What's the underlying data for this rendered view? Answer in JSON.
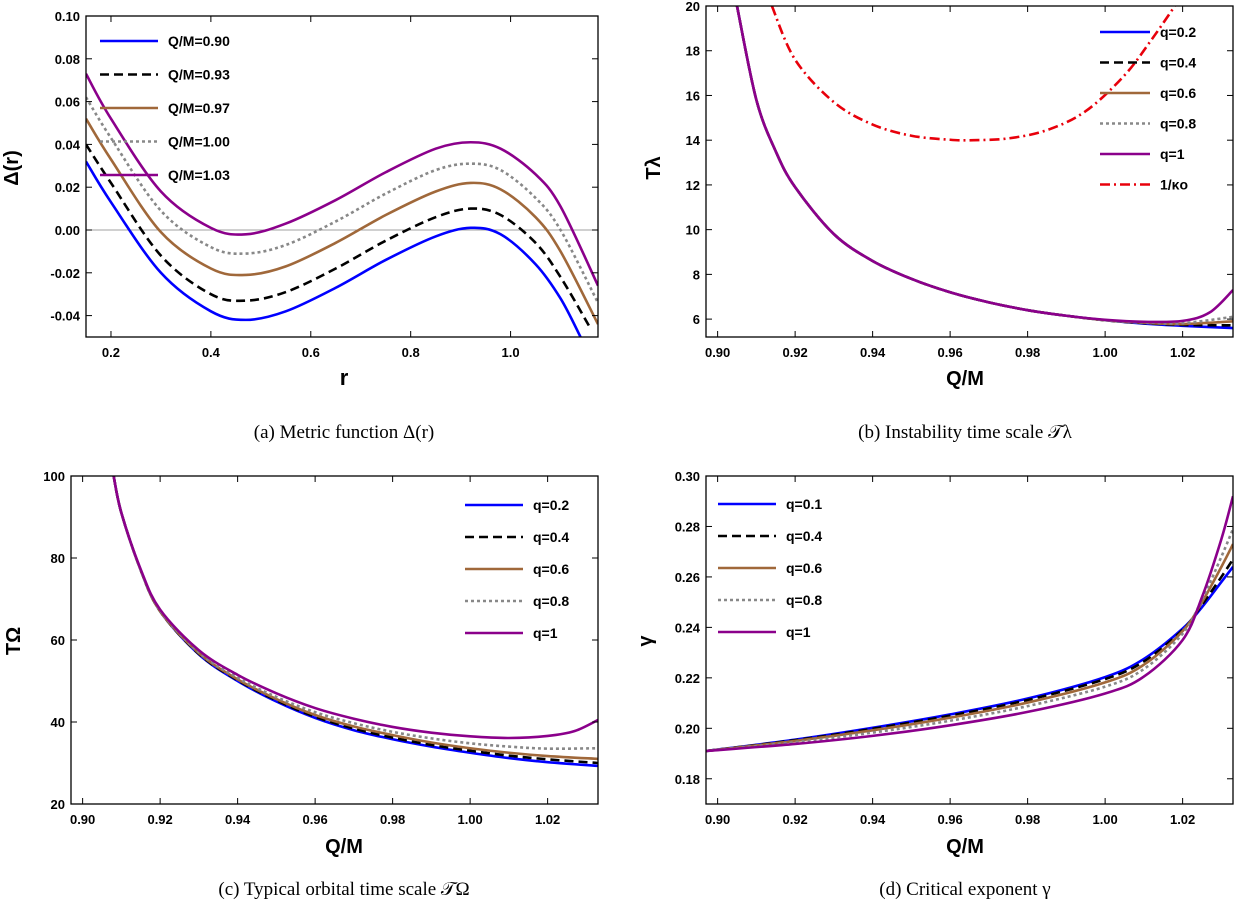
{
  "colors": {
    "blue": "#0000ff",
    "black": "#000000",
    "brown": "#a0683a",
    "gray": "#888888",
    "purple": "#8b008b",
    "red": "#e8000b",
    "zero_line": "#a0a0a0"
  },
  "chart_data": [
    {
      "id": "a",
      "type": "line",
      "caption": "(a)  Metric function Δ(r)",
      "xlabel": "r",
      "ylabel": "Δ(r)",
      "xlim": [
        0.15,
        1.175
      ],
      "ylim": [
        -0.05,
        0.1
      ],
      "xticks": [
        0.2,
        0.4,
        0.6,
        0.8,
        1.0
      ],
      "xtick_labels": [
        "0.2",
        "0.4",
        "0.6",
        "0.8",
        "1.0"
      ],
      "yticks": [
        -0.04,
        -0.02,
        0.0,
        0.02,
        0.04,
        0.06,
        0.08,
        0.1
      ],
      "ytick_labels": [
        "-0.04",
        "-0.02",
        "0.00",
        "0.02",
        "0.04",
        "0.06",
        "0.08",
        "0.10"
      ],
      "zero_line": true,
      "legend_position": "top-left",
      "series": [
        {
          "name": "Q/M=0.90",
          "color": "blue",
          "dash": "solid",
          "x": [
            0.15,
            0.2,
            0.3,
            0.4,
            0.47,
            0.55,
            0.65,
            0.75,
            0.85,
            0.92,
            0.98,
            1.05,
            1.1,
            1.14
          ],
          "y": [
            0.032,
            0.013,
            -0.02,
            -0.038,
            -0.042,
            -0.038,
            -0.027,
            -0.014,
            -0.003,
            0.001,
            -0.002,
            -0.016,
            -0.032,
            -0.05
          ]
        },
        {
          "name": "Q/M=0.93",
          "color": "black",
          "dash": "dashed",
          "x": [
            0.15,
            0.2,
            0.3,
            0.4,
            0.47,
            0.55,
            0.65,
            0.75,
            0.85,
            0.92,
            0.98,
            1.05,
            1.1,
            1.16
          ],
          "y": [
            0.04,
            0.022,
            -0.012,
            -0.03,
            -0.033,
            -0.029,
            -0.018,
            -0.005,
            0.006,
            0.01,
            0.007,
            -0.006,
            -0.022,
            -0.046
          ]
        },
        {
          "name": "Q/M=0.97",
          "color": "brown",
          "dash": "solid",
          "x": [
            0.15,
            0.2,
            0.3,
            0.4,
            0.47,
            0.55,
            0.65,
            0.75,
            0.85,
            0.92,
            0.98,
            1.05,
            1.1,
            1.175
          ],
          "y": [
            0.052,
            0.033,
            -0.001,
            -0.018,
            -0.021,
            -0.017,
            -0.006,
            0.007,
            0.018,
            0.022,
            0.019,
            0.006,
            -0.01,
            -0.044
          ]
        },
        {
          "name": "Q/M=1.00",
          "color": "gray",
          "dash": "dotted",
          "x": [
            0.15,
            0.2,
            0.3,
            0.4,
            0.47,
            0.55,
            0.65,
            0.75,
            0.85,
            0.92,
            0.98,
            1.05,
            1.1,
            1.175
          ],
          "y": [
            0.062,
            0.043,
            0.009,
            -0.008,
            -0.011,
            -0.007,
            0.004,
            0.017,
            0.028,
            0.031,
            0.028,
            0.015,
            0.0,
            -0.034
          ]
        },
        {
          "name": "Q/M=1.03",
          "color": "purple",
          "dash": "solid",
          "x": [
            0.15,
            0.2,
            0.3,
            0.4,
            0.47,
            0.55,
            0.65,
            0.75,
            0.85,
            0.92,
            0.98,
            1.05,
            1.1,
            1.175
          ],
          "y": [
            0.073,
            0.052,
            0.018,
            0.001,
            -0.002,
            0.003,
            0.014,
            0.027,
            0.038,
            0.041,
            0.038,
            0.026,
            0.011,
            -0.026
          ]
        }
      ]
    },
    {
      "id": "b",
      "type": "line",
      "caption": "(b)  Instability time scale 𝒯λ",
      "xlabel": "Q/M",
      "ylabel": "Tλ",
      "xlim": [
        0.897,
        1.033
      ],
      "ylim": [
        5.2,
        20
      ],
      "xticks": [
        0.9,
        0.92,
        0.94,
        0.96,
        0.98,
        1.0,
        1.02
      ],
      "xtick_labels": [
        "0.90",
        "0.92",
        "0.94",
        "0.96",
        "0.98",
        "1.00",
        "1.02"
      ],
      "yticks": [
        6,
        8,
        10,
        12,
        14,
        16,
        18,
        20
      ],
      "ytick_labels": [
        "6",
        "8",
        "10",
        "12",
        "14",
        "16",
        "18",
        "20"
      ],
      "legend_position": "top-right",
      "series": [
        {
          "name": "q=0.2",
          "color": "blue",
          "dash": "solid",
          "x": [
            0.905,
            0.91,
            0.915,
            0.92,
            0.93,
            0.94,
            0.95,
            0.96,
            0.97,
            0.98,
            0.99,
            1.0,
            1.01,
            1.02,
            1.033
          ],
          "y": [
            20.0,
            15.8,
            13.5,
            11.9,
            9.8,
            8.6,
            7.8,
            7.2,
            6.75,
            6.4,
            6.15,
            5.95,
            5.8,
            5.7,
            5.6
          ]
        },
        {
          "name": "q=0.4",
          "color": "black",
          "dash": "dashed",
          "x": [
            0.905,
            0.91,
            0.915,
            0.92,
            0.93,
            0.94,
            0.95,
            0.96,
            0.97,
            0.98,
            0.99,
            1.0,
            1.01,
            1.02,
            1.033
          ],
          "y": [
            20.0,
            15.8,
            13.5,
            11.9,
            9.8,
            8.6,
            7.8,
            7.2,
            6.75,
            6.4,
            6.15,
            5.95,
            5.82,
            5.74,
            5.72
          ]
        },
        {
          "name": "q=0.6",
          "color": "brown",
          "dash": "solid",
          "x": [
            0.905,
            0.91,
            0.915,
            0.92,
            0.93,
            0.94,
            0.95,
            0.96,
            0.97,
            0.98,
            0.99,
            1.0,
            1.01,
            1.02,
            1.033
          ],
          "y": [
            20.0,
            15.8,
            13.5,
            11.9,
            9.8,
            8.6,
            7.8,
            7.2,
            6.75,
            6.4,
            6.15,
            5.95,
            5.84,
            5.78,
            5.9
          ]
        },
        {
          "name": "q=0.8",
          "color": "gray",
          "dash": "dotted",
          "x": [
            0.905,
            0.91,
            0.915,
            0.92,
            0.93,
            0.94,
            0.95,
            0.96,
            0.97,
            0.98,
            0.99,
            1.0,
            1.01,
            1.02,
            1.033
          ],
          "y": [
            20.0,
            15.8,
            13.5,
            11.9,
            9.8,
            8.6,
            7.8,
            7.2,
            6.75,
            6.4,
            6.15,
            5.95,
            5.85,
            5.82,
            6.1
          ]
        },
        {
          "name": "q=1",
          "color": "purple",
          "dash": "solid",
          "x": [
            0.905,
            0.91,
            0.915,
            0.92,
            0.93,
            0.94,
            0.95,
            0.96,
            0.97,
            0.98,
            0.99,
            1.0,
            1.01,
            1.02,
            1.027,
            1.033
          ],
          "y": [
            20.0,
            15.8,
            13.5,
            11.9,
            9.8,
            8.6,
            7.8,
            7.2,
            6.75,
            6.4,
            6.15,
            5.97,
            5.88,
            5.92,
            6.3,
            7.3
          ]
        },
        {
          "name": "1/κo",
          "color": "red",
          "dash": "dashdot",
          "x": [
            0.914,
            0.92,
            0.93,
            0.94,
            0.95,
            0.96,
            0.966,
            0.975,
            0.985,
            0.995,
            1.005,
            1.012,
            1.018
          ],
          "y": [
            20.0,
            17.6,
            15.7,
            14.7,
            14.2,
            14.02,
            14.0,
            14.08,
            14.45,
            15.3,
            16.9,
            18.5,
            20.0
          ]
        }
      ]
    },
    {
      "id": "c",
      "type": "line",
      "caption": "(c)  Typical orbital time scale 𝒯Ω",
      "xlabel": "Q/M",
      "ylabel": "TΩ",
      "xlim": [
        0.897,
        1.033
      ],
      "ylim": [
        20,
        100
      ],
      "xticks": [
        0.9,
        0.92,
        0.94,
        0.96,
        0.98,
        1.0,
        1.02
      ],
      "xtick_labels": [
        "0.90",
        "0.92",
        "0.94",
        "0.96",
        "0.98",
        "1.00",
        "1.02"
      ],
      "yticks": [
        20,
        40,
        60,
        80,
        100
      ],
      "ytick_labels": [
        "20",
        "40",
        "60",
        "80",
        "100"
      ],
      "legend_position": "top-right",
      "series": [
        {
          "name": "q=0.2",
          "color": "blue",
          "dash": "solid",
          "x": [
            0.908,
            0.91,
            0.915,
            0.92,
            0.93,
            0.94,
            0.95,
            0.96,
            0.97,
            0.98,
            0.99,
            1.0,
            1.01,
            1.02,
            1.033
          ],
          "y": [
            100,
            91,
            77,
            67,
            56.5,
            50,
            45,
            41,
            38,
            35.8,
            34,
            32.5,
            31.2,
            30.2,
            29.3
          ]
        },
        {
          "name": "q=0.4",
          "color": "black",
          "dash": "dashed",
          "x": [
            0.908,
            0.91,
            0.915,
            0.92,
            0.93,
            0.94,
            0.95,
            0.96,
            0.97,
            0.98,
            0.99,
            1.0,
            1.01,
            1.02,
            1.033
          ],
          "y": [
            100,
            91,
            77,
            67,
            56.6,
            50.2,
            45.3,
            41.3,
            38.4,
            36.2,
            34.4,
            33,
            31.8,
            30.9,
            30
          ]
        },
        {
          "name": "q=0.6",
          "color": "brown",
          "dash": "solid",
          "x": [
            0.908,
            0.91,
            0.915,
            0.92,
            0.93,
            0.94,
            0.95,
            0.96,
            0.97,
            0.98,
            0.99,
            1.0,
            1.01,
            1.02,
            1.033
          ],
          "y": [
            100,
            91,
            77,
            67,
            56.8,
            50.4,
            45.6,
            41.7,
            38.9,
            36.8,
            35,
            33.6,
            32.5,
            31.7,
            31
          ]
        },
        {
          "name": "q=0.8",
          "color": "gray",
          "dash": "dotted",
          "x": [
            0.908,
            0.91,
            0.915,
            0.92,
            0.93,
            0.94,
            0.95,
            0.96,
            0.97,
            0.98,
            0.99,
            1.0,
            1.01,
            1.02,
            1.033
          ],
          "y": [
            100,
            91,
            77,
            67.2,
            57,
            50.8,
            46.1,
            42.4,
            39.7,
            37.6,
            36,
            34.8,
            34,
            33.5,
            33.6
          ]
        },
        {
          "name": "q=1",
          "color": "purple",
          "dash": "solid",
          "x": [
            0.908,
            0.91,
            0.915,
            0.92,
            0.93,
            0.94,
            0.95,
            0.96,
            0.97,
            0.98,
            0.99,
            1.0,
            1.01,
            1.02,
            1.027,
            1.033
          ],
          "y": [
            100,
            91,
            77.2,
            67.4,
            57.5,
            51.5,
            47,
            43.4,
            40.8,
            38.8,
            37.4,
            36.5,
            36.1,
            36.6,
            37.8,
            40.5
          ]
        }
      ]
    },
    {
      "id": "d",
      "type": "line",
      "caption": "(d)  Critical exponent γ",
      "xlabel": "Q/M",
      "ylabel": "γ",
      "xlim": [
        0.897,
        1.033
      ],
      "ylim": [
        0.17,
        0.3
      ],
      "xticks": [
        0.9,
        0.92,
        0.94,
        0.96,
        0.98,
        1.0,
        1.02
      ],
      "xtick_labels": [
        "0.90",
        "0.92",
        "0.94",
        "0.96",
        "0.98",
        "1.00",
        "1.02"
      ],
      "yticks": [
        0.18,
        0.2,
        0.22,
        0.24,
        0.26,
        0.28,
        0.3
      ],
      "ytick_labels": [
        "0.18",
        "0.20",
        "0.22",
        "0.24",
        "0.26",
        "0.28",
        "0.30"
      ],
      "legend_position": "top-left",
      "series": [
        {
          "name": "q=0.1",
          "color": "blue",
          "dash": "solid",
          "x": [
            0.897,
            0.92,
            0.94,
            0.96,
            0.98,
            1.0,
            1.01,
            1.02,
            1.025,
            1.03,
            1.033
          ],
          "y": [
            0.191,
            0.1955,
            0.2002,
            0.2055,
            0.2118,
            0.2203,
            0.2275,
            0.2395,
            0.248,
            0.258,
            0.264
          ]
        },
        {
          "name": "q=0.4",
          "color": "black",
          "dash": "dashed",
          "x": [
            0.897,
            0.92,
            0.94,
            0.96,
            0.98,
            1.0,
            1.01,
            1.02,
            1.025,
            1.03,
            1.033
          ],
          "y": [
            0.191,
            0.1953,
            0.1998,
            0.205,
            0.2112,
            0.2195,
            0.2265,
            0.239,
            0.249,
            0.26,
            0.267
          ]
        },
        {
          "name": "q=0.6",
          "color": "brown",
          "dash": "solid",
          "x": [
            0.897,
            0.92,
            0.94,
            0.96,
            0.98,
            1.0,
            1.01,
            1.02,
            1.025,
            1.03,
            1.033
          ],
          "y": [
            0.191,
            0.195,
            0.1992,
            0.2042,
            0.2102,
            0.2182,
            0.2252,
            0.2385,
            0.25,
            0.264,
            0.273
          ]
        },
        {
          "name": "q=0.8",
          "color": "gray",
          "dash": "dotted",
          "x": [
            0.897,
            0.92,
            0.94,
            0.96,
            0.98,
            1.0,
            1.01,
            1.02,
            1.025,
            1.03,
            1.033
          ],
          "y": [
            0.191,
            0.1945,
            0.1983,
            0.203,
            0.2088,
            0.2165,
            0.2235,
            0.2375,
            0.251,
            0.268,
            0.279
          ]
        },
        {
          "name": "q=1",
          "color": "purple",
          "dash": "solid",
          "x": [
            0.897,
            0.92,
            0.94,
            0.96,
            0.98,
            1.0,
            1.01,
            1.02,
            1.025,
            1.03,
            1.033
          ],
          "y": [
            0.191,
            0.1938,
            0.197,
            0.2012,
            0.2065,
            0.2138,
            0.2205,
            0.235,
            0.252,
            0.275,
            0.292
          ]
        }
      ]
    }
  ]
}
